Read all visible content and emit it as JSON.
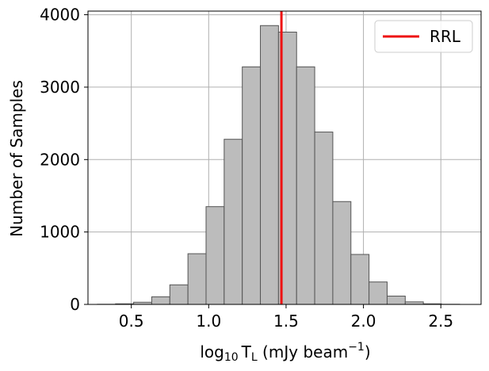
{
  "chart_data": {
    "type": "bar",
    "subtype": "histogram",
    "xlabel": {
      "prefix": "log",
      "log_base": "10",
      "variable": "T",
      "variable_subscript": "L",
      "unit_open": " (mJy beam",
      "unit_exponent": "−1",
      "unit_close": ")"
    },
    "ylabel": "Number of Samples",
    "xlim": [
      0.22,
      2.76
    ],
    "ylim": [
      0,
      4050
    ],
    "xticks": [
      0.5,
      1.0,
      1.5,
      2.0,
      2.5
    ],
    "xtick_labels": [
      "0.5",
      "1.0",
      "1.5",
      "2.0",
      "2.5"
    ],
    "yticks": [
      0,
      1000,
      2000,
      3000,
      4000
    ],
    "ytick_labels": [
      "0",
      "1000",
      "2000",
      "3000",
      "4000"
    ],
    "grid": true,
    "bin_width": 0.117,
    "bin_edges_start": 0.281,
    "values": [
      2,
      8,
      30,
      105,
      270,
      700,
      1350,
      2280,
      3280,
      3850,
      3760,
      3280,
      2380,
      1420,
      690,
      310,
      115,
      35,
      8,
      2
    ],
    "bar_color": "#bcbcbc",
    "bar_edge_color": "#555555",
    "reference_line": {
      "label": "RRL",
      "x": 1.47,
      "color": "#ee1111"
    },
    "legend": {
      "position": "top-right",
      "entries": [
        "RRL"
      ]
    }
  }
}
